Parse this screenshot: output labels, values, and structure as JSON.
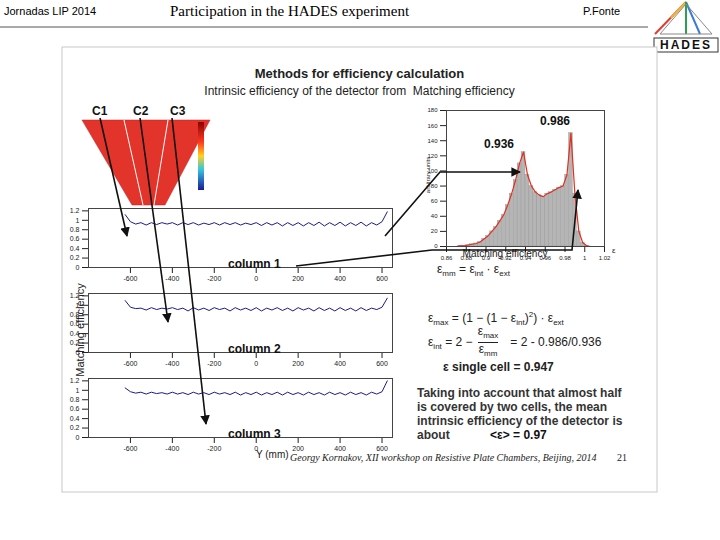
{
  "header": {
    "left": "Jornadas LIP 2014",
    "center": "Participation in the HADES experiment",
    "right": "P.Fonte",
    "logo": "HADES"
  },
  "slide": {
    "title": "Methods for efficiency calculation",
    "subtitle": "Intrinsic efficiency of the detector from  Matching efficiency",
    "shared_y_label": "Matching efficiency",
    "detector_columns": [
      "C1",
      "C2",
      "C3"
    ],
    "formulas": [
      [
        {
          "t": "ε",
          "sub": "mm"
        },
        {
          "t": " = "
        },
        {
          "t": "ε",
          "sub": "int"
        },
        {
          "t": " · "
        },
        {
          "t": "ε",
          "sub": "ext"
        }
      ],
      [
        {
          "t": "ε",
          "sub": "max"
        },
        {
          "t": " = (1 − (1 − "
        },
        {
          "t": "ε",
          "sub": "int"
        },
        {
          "t": ")",
          "sup": "2"
        },
        {
          "t": ") · "
        },
        {
          "t": "ε",
          "sub": "ext"
        }
      ],
      [
        {
          "t": "ε",
          "sub": "int"
        },
        {
          "t": " = 2 − "
        },
        {
          "frac": [
            [
              {
                "t": "ε",
                "sub": "max"
              }
            ],
            [
              {
                "t": "ε",
                "sub": "mm"
              }
            ]
          ]
        },
        {
          "t": "   = 2 - 0.986/0.936"
        }
      ]
    ],
    "single_cell": "ε single cell = 0.947",
    "conclusion": [
      "Taking into account that almost half",
      "is covered by two cells, the mean",
      "intrinsic efficiency of the detector is"
    ],
    "conclusion_end": [
      "about",
      "<ε> = 0.97"
    ],
    "footer": "Georgy Kornakov, XII workshop on Resistive Plate Chambers, Beijing, 2014",
    "page_number": "21"
  },
  "chart_data": [
    {
      "type": "histogram",
      "x_label": "Matching efficiency",
      "y_label": "arbitrary units",
      "x_symbol": "ε",
      "annotations": [
        "0.986",
        "0.936"
      ],
      "bins": [
        0.86,
        0.864,
        0.868,
        0.872,
        0.876,
        0.88,
        0.884,
        0.888,
        0.892,
        0.896,
        0.9,
        0.904,
        0.908,
        0.912,
        0.916,
        0.92,
        0.924,
        0.928,
        0.932,
        0.936,
        0.94,
        0.944,
        0.948,
        0.952,
        0.956,
        0.96,
        0.964,
        0.968,
        0.972,
        0.976,
        0.98,
        0.984,
        0.988,
        0.992,
        0.996,
        1,
        1.004,
        1.008,
        1.012,
        1.016,
        1.02
      ],
      "series": [
        {
          "type": "bar",
          "color": "#b5b5b5",
          "values": [
            0,
            0,
            0,
            1,
            1,
            2,
            3,
            4,
            6,
            10,
            14,
            20,
            26,
            34,
            42,
            55,
            70,
            88,
            110,
            125,
            95,
            80,
            72,
            68,
            66,
            70,
            72,
            75,
            78,
            80,
            95,
            150,
            70,
            20,
            5,
            1,
            0,
            0,
            0,
            0
          ]
        },
        {
          "type": "line",
          "color": "#e0301e",
          "values": [
            0,
            0,
            0,
            1,
            1,
            2,
            3,
            4,
            6,
            10,
            14,
            20,
            26,
            34,
            42,
            55,
            70,
            88,
            110,
            125,
            95,
            80,
            72,
            68,
            66,
            70,
            72,
            75,
            78,
            80,
            95,
            150,
            70,
            20,
            5,
            1,
            0,
            0,
            0,
            0
          ]
        }
      ],
      "xlim": [
        0.86,
        1.02
      ],
      "xticks": [
        0.86,
        0.88,
        0.9,
        0.92,
        0.94,
        0.96,
        0.98,
        1,
        1.02
      ],
      "ylim": [
        0,
        180
      ],
      "yticks": [
        0,
        20,
        40,
        60,
        80,
        100,
        120,
        140,
        160,
        180
      ]
    },
    {
      "type": "line",
      "title": "column 1",
      "color": "#1c1c8c",
      "x": [
        -625,
        -600,
        -575,
        -550,
        -525,
        -500,
        -475,
        -450,
        -425,
        -400,
        -375,
        -350,
        -325,
        -300,
        -275,
        -250,
        -225,
        -200,
        -175,
        -150,
        -125,
        -100,
        -75,
        -50,
        -25,
        0,
        25,
        50,
        75,
        100,
        125,
        150,
        175,
        200,
        225,
        250,
        275,
        300,
        325,
        350,
        375,
        400,
        425,
        450,
        475,
        500,
        525,
        550,
        575,
        600,
        625
      ],
      "values": [
        1.12,
        0.97,
        0.92,
        0.95,
        0.9,
        0.95,
        0.91,
        0.95,
        0.92,
        0.95,
        0.9,
        0.95,
        0.91,
        0.95,
        0.9,
        0.94,
        0.91,
        0.95,
        0.9,
        0.95,
        0.91,
        0.95,
        0.9,
        0.94,
        0.91,
        0.95,
        0.89,
        0.95,
        0.9,
        0.95,
        0.88,
        0.95,
        0.89,
        0.95,
        0.88,
        0.95,
        0.89,
        0.96,
        0.88,
        0.95,
        0.89,
        0.96,
        0.88,
        0.95,
        0.89,
        0.96,
        0.88,
        0.95,
        0.9,
        0.97,
        1.18
      ],
      "xlim": [
        -800,
        650
      ],
      "xticks": [
        -600,
        -400,
        -200,
        0,
        200,
        400,
        600
      ],
      "ylim": [
        0,
        1.25
      ],
      "yticks": [
        0,
        0.2,
        0.4,
        0.6,
        0.8,
        1,
        1.2
      ]
    },
    {
      "type": "line",
      "title": "column 2",
      "color": "#1c1c8c",
      "x": [
        -625,
        -600,
        -575,
        -550,
        -525,
        -500,
        -475,
        -450,
        -425,
        -400,
        -375,
        -350,
        -325,
        -300,
        -275,
        -250,
        -225,
        -200,
        -175,
        -150,
        -125,
        -100,
        -75,
        -50,
        -25,
        0,
        25,
        50,
        75,
        100,
        125,
        150,
        175,
        200,
        225,
        250,
        275,
        300,
        325,
        350,
        375,
        400,
        425,
        450,
        475,
        500,
        525,
        550,
        575,
        600,
        625
      ],
      "values": [
        1.1,
        0.96,
        0.93,
        0.94,
        0.9,
        0.95,
        0.91,
        0.94,
        0.92,
        0.95,
        0.91,
        0.94,
        0.88,
        0.95,
        0.9,
        0.94,
        0.89,
        0.95,
        0.91,
        0.94,
        0.88,
        0.95,
        0.9,
        0.94,
        0.89,
        0.95,
        0.88,
        0.94,
        0.9,
        0.95,
        0.89,
        0.94,
        0.88,
        0.95,
        0.9,
        0.94,
        0.88,
        0.95,
        0.89,
        0.94,
        0.88,
        0.95,
        0.89,
        0.94,
        0.88,
        0.95,
        0.89,
        0.94,
        0.91,
        0.96,
        1.15
      ],
      "xlim": [
        -800,
        650
      ],
      "xticks": [
        -600,
        -400,
        -200,
        0,
        200,
        400,
        600
      ],
      "ylim": [
        0,
        1.25
      ],
      "yticks": [
        0,
        0.2,
        0.4,
        0.6,
        0.8,
        1,
        1.2
      ]
    },
    {
      "type": "line",
      "title": "column 3",
      "color": "#1c1c8c",
      "x_label": "Y (mm)",
      "x": [
        -625,
        -600,
        -575,
        -550,
        -525,
        -500,
        -475,
        -450,
        -425,
        -400,
        -375,
        -350,
        -325,
        -300,
        -275,
        -250,
        -225,
        -200,
        -175,
        -150,
        -125,
        -100,
        -75,
        -50,
        -25,
        0,
        25,
        50,
        75,
        100,
        125,
        150,
        175,
        200,
        225,
        250,
        275,
        300,
        325,
        350,
        375,
        400,
        425,
        450,
        475,
        500,
        525,
        550,
        575,
        600,
        625
      ],
      "values": [
        1.05,
        0.97,
        0.94,
        0.96,
        0.92,
        0.96,
        0.93,
        0.95,
        0.92,
        0.96,
        0.92,
        0.95,
        0.91,
        0.96,
        0.92,
        0.95,
        0.91,
        0.96,
        0.92,
        0.95,
        0.91,
        0.96,
        0.9,
        0.95,
        0.91,
        0.96,
        0.9,
        0.95,
        0.91,
        0.96,
        0.9,
        0.96,
        0.91,
        0.95,
        0.9,
        0.96,
        0.91,
        0.95,
        0.9,
        0.96,
        0.91,
        0.95,
        0.9,
        0.96,
        0.91,
        0.95,
        0.9,
        0.96,
        0.92,
        0.97,
        1.2
      ],
      "xlim": [
        -800,
        650
      ],
      "xticks": [
        -600,
        -400,
        -200,
        0,
        200,
        400,
        600
      ],
      "ylim": [
        0,
        1.25
      ],
      "yticks": [
        0,
        0.2,
        0.4,
        0.6,
        0.8,
        1,
        1.2
      ]
    }
  ]
}
